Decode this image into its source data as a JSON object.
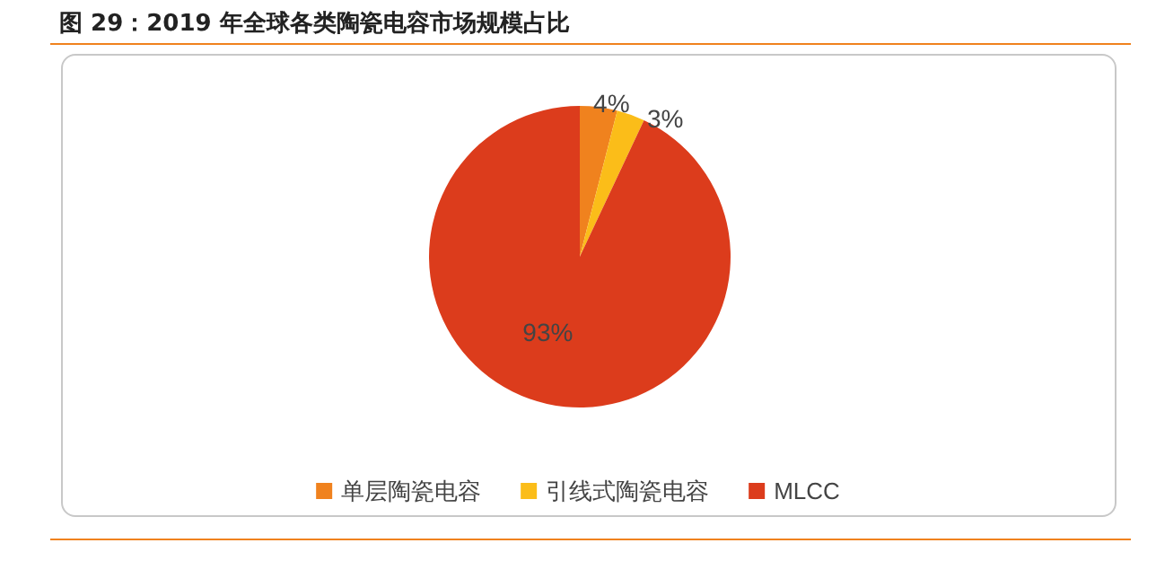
{
  "chart_data": {
    "type": "pie",
    "title": "图 29：2019 年全球各类陶瓷电容市场规模占比",
    "categories": [
      "单层陶瓷电容",
      "引线式陶瓷电容",
      "MLCC"
    ],
    "values": [
      4,
      3,
      93
    ],
    "colors": [
      "#f0821e",
      "#fbbd19",
      "#dc3c1c"
    ],
    "value_labels": [
      "4%",
      "3%",
      "93%"
    ],
    "legend": "bottom"
  }
}
